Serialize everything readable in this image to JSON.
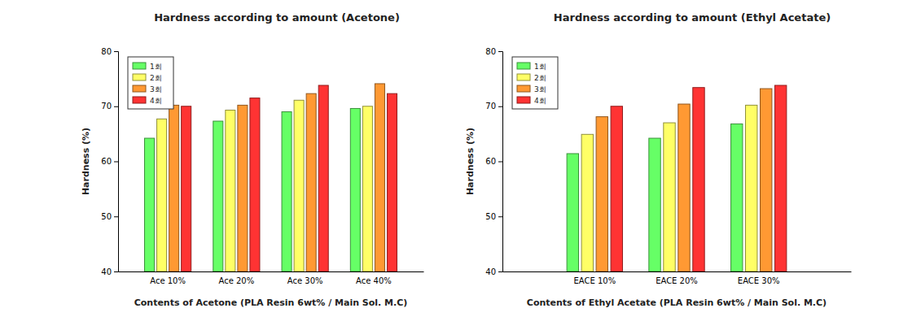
{
  "chart_data": [
    {
      "type": "bar",
      "title": "Hardness according to amount (Acetone)",
      "x_label": "Contents of Acetone (PLA Resin 6wt% / Main Sol. M.C)",
      "y_label": "Hardness (%)",
      "categories": [
        "Ace 10%",
        "Ace 20%",
        "Ace 30%",
        "Ace 40%"
      ],
      "series": [
        {
          "name": "1회",
          "color": "#66ff66",
          "values": [
            64.2,
            67.3,
            69.0,
            69.6
          ]
        },
        {
          "name": "2회",
          "color": "#ffff66",
          "values": [
            67.7,
            69.3,
            71.1,
            70.0
          ]
        },
        {
          "name": "3회",
          "color": "#ff9933",
          "values": [
            70.2,
            70.2,
            72.3,
            74.1
          ]
        },
        {
          "name": "4회",
          "color": "#ff3333",
          "values": [
            70.0,
            71.5,
            73.8,
            72.3
          ]
        }
      ],
      "ylim": [
        40,
        80
      ],
      "yticks": [
        40,
        50,
        60,
        70,
        80
      ],
      "legend": "upper left"
    },
    {
      "type": "bar",
      "title": "Hardness according to amount (Ethyl Acetate)",
      "x_label": "Contents of Ethyl Acetate (PLA Resin 6wt% / Main Sol. M.C)",
      "y_label": "Hardness (%)",
      "categories": [
        "EACE 10%",
        "EACE 20%",
        "EACE 30%"
      ],
      "series": [
        {
          "name": "1회",
          "color": "#66ff66",
          "values": [
            61.4,
            64.2,
            66.8
          ]
        },
        {
          "name": "2회",
          "color": "#ffff66",
          "values": [
            64.9,
            67.0,
            70.2
          ]
        },
        {
          "name": "3회",
          "color": "#ff9933",
          "values": [
            68.1,
            70.4,
            73.2
          ]
        },
        {
          "name": "4회",
          "color": "#ff3333",
          "values": [
            70.0,
            73.4,
            73.8
          ]
        }
      ],
      "ylim": [
        40,
        80
      ],
      "yticks": [
        40,
        50,
        60,
        70,
        80
      ],
      "legend": "upper left"
    }
  ]
}
